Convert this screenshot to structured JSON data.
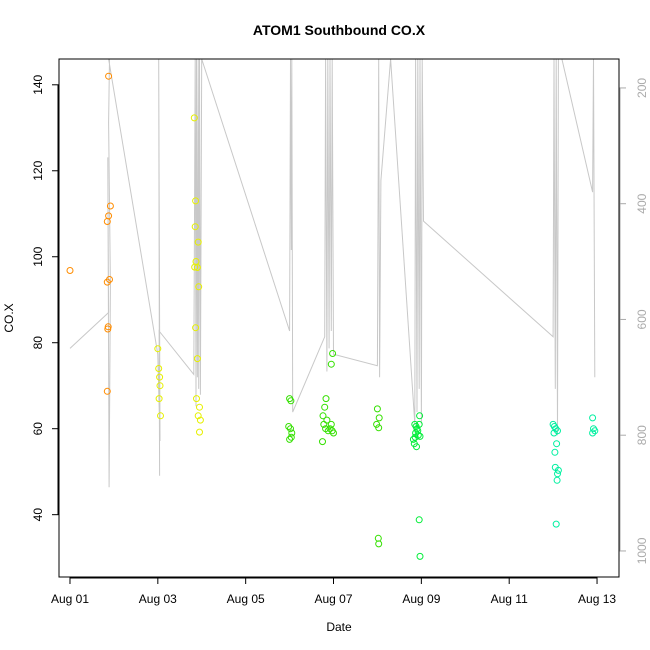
{
  "chart_data": {
    "type": "scatter",
    "title": "ATOM1 Southbound CO.X",
    "xlabel": "Date",
    "ylabel": "CO.X",
    "x_ticks": [
      "Aug 01",
      "Aug 03",
      "Aug 05",
      "Aug 07",
      "Aug 09",
      "Aug 11",
      "Aug 13"
    ],
    "x_tick_days": [
      1,
      3,
      5,
      7,
      9,
      11,
      13
    ],
    "xlim": [
      0.75,
      13.5
    ],
    "ylim": [
      25.5,
      146
    ],
    "y_ticks": [
      40,
      60,
      80,
      100,
      120,
      140
    ],
    "right_axis": {
      "label": "",
      "ticks": [
        200,
        400,
        600,
        800,
        1000
      ],
      "ylim": [
        1045,
        150
      ],
      "color": "#aaaaaa"
    },
    "grid": false,
    "legend": "none",
    "series": [
      {
        "color": "#ff8c00",
        "points": [
          [
            1.0,
            96.8
          ],
          [
            1.88,
            142
          ],
          [
            1.92,
            111.8
          ],
          [
            1.88,
            109.5
          ],
          [
            1.85,
            108.2
          ],
          [
            1.9,
            94.7
          ],
          [
            1.85,
            94.1
          ],
          [
            1.87,
            83.7
          ],
          [
            1.86,
            83.2
          ],
          [
            1.85,
            68.7
          ]
        ]
      },
      {
        "color": "#e6f000",
        "points": [
          [
            3.0,
            78.6
          ],
          [
            3.02,
            74
          ],
          [
            3.04,
            72
          ],
          [
            3.05,
            70
          ],
          [
            3.03,
            67
          ],
          [
            3.06,
            63
          ],
          [
            3.83,
            132.3
          ],
          [
            3.86,
            113
          ],
          [
            3.85,
            107
          ],
          [
            3.92,
            103.4
          ],
          [
            3.87,
            98.9
          ],
          [
            3.9,
            97.5
          ],
          [
            3.84,
            97.6
          ],
          [
            3.93,
            93
          ],
          [
            3.86,
            83.5
          ],
          [
            3.9,
            76.3
          ],
          [
            3.88,
            67
          ],
          [
            3.95,
            65
          ],
          [
            3.92,
            63
          ],
          [
            3.97,
            62
          ],
          [
            3.95,
            59.2
          ]
        ]
      },
      {
        "color": "#34e000",
        "points": [
          [
            6.0,
            67
          ],
          [
            6.03,
            66.5
          ],
          [
            5.98,
            60.5
          ],
          [
            6.02,
            60
          ],
          [
            6.05,
            59
          ],
          [
            6.0,
            57.5
          ],
          [
            6.04,
            58
          ],
          [
            6.83,
            67
          ],
          [
            6.8,
            65
          ],
          [
            6.76,
            63
          ],
          [
            6.85,
            62
          ],
          [
            6.78,
            61
          ],
          [
            6.82,
            60
          ],
          [
            6.88,
            59.5
          ],
          [
            6.92,
            60
          ],
          [
            6.95,
            61
          ],
          [
            6.97,
            59.5
          ],
          [
            7.0,
            59
          ],
          [
            6.75,
            57
          ],
          [
            6.98,
            77.5
          ],
          [
            6.95,
            75
          ],
          [
            8.0,
            64.6
          ],
          [
            8.04,
            62.5
          ],
          [
            7.98,
            61
          ],
          [
            8.03,
            60.2
          ],
          [
            8.02,
            34.5
          ],
          [
            8.03,
            33.2
          ]
        ]
      },
      {
        "color": "#00ee38",
        "points": [
          [
            8.85,
            61
          ],
          [
            8.88,
            60.5
          ],
          [
            8.9,
            60
          ],
          [
            8.92,
            59.5
          ],
          [
            8.95,
            61
          ],
          [
            8.87,
            59
          ],
          [
            8.93,
            58.5
          ],
          [
            8.86,
            58
          ],
          [
            8.97,
            58.2
          ],
          [
            8.82,
            57.5
          ],
          [
            8.84,
            56.5
          ],
          [
            8.89,
            55.8
          ],
          [
            8.96,
            63
          ],
          [
            8.95,
            38.8
          ],
          [
            8.97,
            30.3
          ]
        ]
      },
      {
        "color": "#00f0a0",
        "points": [
          [
            12.0,
            61
          ],
          [
            12.03,
            60.5
          ],
          [
            12.06,
            60
          ],
          [
            12.1,
            59.5
          ],
          [
            12.02,
            59
          ],
          [
            12.08,
            56.5
          ],
          [
            12.04,
            54.5
          ],
          [
            12.05,
            51
          ],
          [
            12.12,
            50.3
          ],
          [
            12.1,
            49.5
          ],
          [
            12.09,
            48
          ],
          [
            12.07,
            37.8
          ],
          [
            12.9,
            62.5
          ],
          [
            12.92,
            60
          ],
          [
            12.95,
            59.5
          ],
          [
            12.9,
            59
          ]
        ]
      }
    ],
    "gray_line": {
      "color": "#c8c8c8",
      "points": [
        [
          1.0,
          650
        ],
        [
          1.88,
          588
        ],
        [
          1.86,
          320
        ],
        [
          1.89,
          890
        ],
        [
          1.92,
          540
        ],
        [
          1.88,
          260
        ],
        [
          1.9,
          150
        ],
        [
          1.88,
          150
        ],
        [
          3.0,
          660
        ],
        [
          3.05,
          810
        ],
        [
          3.02,
          150
        ],
        [
          3.04,
          870
        ],
        [
          3.03,
          620
        ],
        [
          3.82,
          695
        ],
        [
          3.85,
          150
        ],
        [
          3.87,
          750
        ],
        [
          3.88,
          150
        ],
        [
          3.9,
          700
        ],
        [
          3.92,
          150
        ],
        [
          3.93,
          720
        ],
        [
          3.95,
          150
        ],
        [
          3.97,
          730
        ],
        [
          4.0,
          150
        ],
        [
          6.0,
          620
        ],
        [
          6.02,
          150
        ],
        [
          6.04,
          480
        ],
        [
          6.05,
          150
        ],
        [
          6.07,
          760
        ],
        [
          6.8,
          630
        ],
        [
          6.82,
          150
        ],
        [
          6.85,
          690
        ],
        [
          6.87,
          150
        ],
        [
          6.9,
          650
        ],
        [
          6.92,
          150
        ],
        [
          6.95,
          620
        ],
        [
          6.97,
          150
        ],
        [
          7.0,
          660
        ],
        [
          8.0,
          680
        ],
        [
          8.03,
          150
        ],
        [
          8.05,
          700
        ],
        [
          8.08,
          360
        ],
        [
          8.3,
          150
        ],
        [
          8.85,
          780
        ],
        [
          8.87,
          150
        ],
        [
          8.9,
          760
        ],
        [
          8.92,
          150
        ],
        [
          8.95,
          720
        ],
        [
          8.97,
          150
        ],
        [
          9.0,
          780
        ],
        [
          9.02,
          150
        ],
        [
          9.05,
          430
        ],
        [
          12.0,
          630
        ],
        [
          12.02,
          150
        ],
        [
          12.05,
          720
        ],
        [
          12.07,
          150
        ],
        [
          12.1,
          800
        ],
        [
          12.12,
          150
        ],
        [
          12.2,
          150
        ],
        [
          12.9,
          380
        ],
        [
          12.92,
          150
        ],
        [
          12.95,
          700
        ]
      ]
    }
  }
}
